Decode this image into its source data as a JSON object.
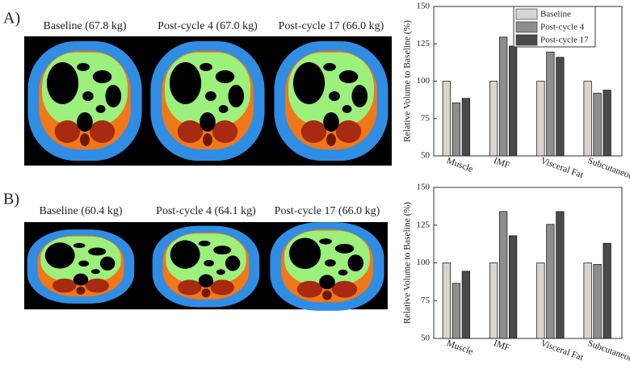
{
  "panels": [
    {
      "label": "A)",
      "captions": [
        "Baseline (67.8 kg)",
        "Post-cycle 4 (67.0 kg)",
        "Post-cycle 17 (66.0 kg)"
      ]
    },
    {
      "label": "B)",
      "captions": [
        "Baseline (60.4 kg)",
        "Post-cycle 4 (64.1 kg)",
        "Post-cycle 17 (66.0 kg)"
      ]
    }
  ],
  "chart_data": [
    {
      "type": "bar",
      "ylabel": "Relative Volume to Baseline (%)",
      "categories": [
        "Muscle",
        "IMF",
        "Visceral Fat",
        "Subcutaneous Fat"
      ],
      "series": [
        {
          "name": "Baseline",
          "color": "#d8d5cf",
          "values": [
            100,
            100,
            100,
            100
          ]
        },
        {
          "name": "Post-cycle 4",
          "color": "#8e8e8e",
          "values": [
            85.5,
            129.5,
            119.5,
            92
          ]
        },
        {
          "name": "Post-cycle 17",
          "color": "#4a4a4a",
          "values": [
            88.5,
            123.5,
            116,
            94
          ]
        }
      ],
      "ylim": [
        50,
        150
      ],
      "yticks": [
        50,
        75,
        100,
        125,
        150
      ],
      "legend": "upper right"
    },
    {
      "type": "bar",
      "ylabel": "Relative Volume to Baseline (%)",
      "categories": [
        "Muscle",
        "IMF",
        "Visceral Fat",
        "Subcutaneous Fat"
      ],
      "series": [
        {
          "color": "#d8d5cf",
          "values": [
            100,
            100,
            100,
            100
          ]
        },
        {
          "color": "#8e8e8e",
          "values": [
            86.5,
            134,
            125.5,
            99
          ]
        },
        {
          "color": "#4a4a4a",
          "values": [
            94.5,
            118,
            134,
            113
          ]
        }
      ],
      "ylim": [
        50,
        150
      ],
      "yticks": [
        50,
        75,
        100,
        125,
        150
      ]
    }
  ]
}
